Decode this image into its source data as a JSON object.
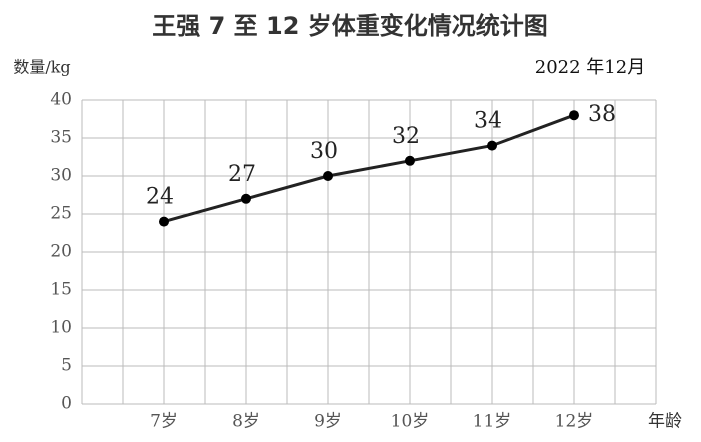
{
  "chart_data": {
    "type": "line",
    "title": "王强 7 至 12 岁体重变化情况统计图",
    "y_label": "数量/kg",
    "x_label": "年龄",
    "date": "2022 年12月",
    "categories": [
      "7岁",
      "8岁",
      "9岁",
      "10岁",
      "11岁",
      "12岁"
    ],
    "values": [
      24,
      27,
      30,
      32,
      34,
      38
    ],
    "color": "#222222",
    "ylim": [
      0,
      40
    ],
    "yticks": [
      0,
      5,
      10,
      15,
      20,
      25,
      30,
      35,
      40
    ],
    "grid": true
  }
}
